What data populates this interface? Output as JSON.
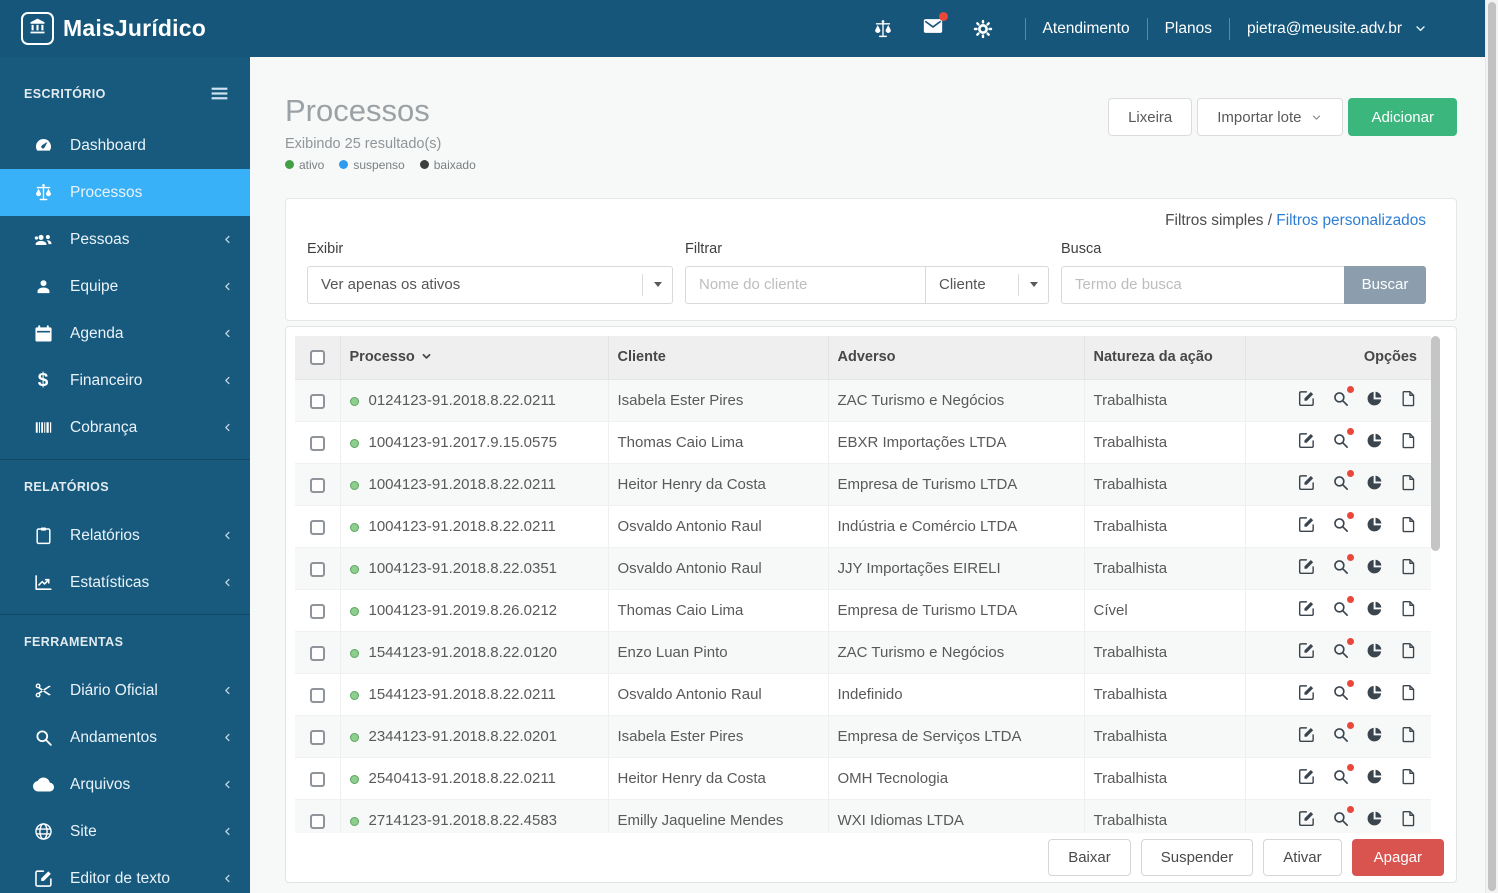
{
  "topbar": {
    "brand": "MaisJurídico",
    "nav_links": [
      {
        "key": "atendimento",
        "label": "Atendimento"
      },
      {
        "key": "planos",
        "label": "Planos"
      }
    ],
    "user_email": "pietra@meusite.adv.br",
    "icon_names": [
      "scale-icon",
      "mail-icon",
      "gear-icon"
    ]
  },
  "sidebar": {
    "sections": [
      {
        "key": "escritorio",
        "label": "ESCRITÓRIO",
        "has_menu_toggle": true,
        "items": [
          {
            "key": "dashboard",
            "label": "Dashboard",
            "icon": "dashboard",
            "active": false,
            "expandable": false
          },
          {
            "key": "processos",
            "label": "Processos",
            "icon": "scale",
            "active": true,
            "expandable": false
          },
          {
            "key": "pessoas",
            "label": "Pessoas",
            "icon": "people",
            "active": false,
            "expandable": true
          },
          {
            "key": "equipe",
            "label": "Equipe",
            "icon": "person",
            "active": false,
            "expandable": true
          },
          {
            "key": "agenda",
            "label": "Agenda",
            "icon": "calendar",
            "active": false,
            "expandable": true
          },
          {
            "key": "financeiro",
            "label": "Financeiro",
            "icon": "dollar",
            "active": false,
            "expandable": true
          },
          {
            "key": "cobranca",
            "label": "Cobrança",
            "icon": "barcode",
            "active": false,
            "expandable": true
          }
        ]
      },
      {
        "key": "relatorios",
        "label": "RELATÓRIOS",
        "has_menu_toggle": false,
        "items": [
          {
            "key": "relatorios",
            "label": "Relatórios",
            "icon": "clipboard",
            "active": false,
            "expandable": true
          },
          {
            "key": "estatisticas",
            "label": "Estatísticas",
            "icon": "chart-line",
            "active": false,
            "expandable": true
          }
        ]
      },
      {
        "key": "ferramentas",
        "label": "FERRAMENTAS",
        "has_menu_toggle": false,
        "items": [
          {
            "key": "diario-oficial",
            "label": "Diário Oficial",
            "icon": "scissors",
            "active": false,
            "expandable": true
          },
          {
            "key": "andamentos",
            "label": "Andamentos",
            "icon": "search",
            "active": false,
            "expandable": true
          },
          {
            "key": "arquivos",
            "label": "Arquivos",
            "icon": "cloud",
            "active": false,
            "expandable": true
          },
          {
            "key": "site",
            "label": "Site",
            "icon": "globe",
            "active": false,
            "expandable": true
          },
          {
            "key": "editor-de-texto",
            "label": "Editor de texto",
            "icon": "edit-square",
            "active": false,
            "expandable": true
          }
        ]
      }
    ]
  },
  "page": {
    "title": "Processos",
    "results_text": "Exibindo 25 resultado(s)",
    "legend": [
      {
        "key": "ativo",
        "label": "ativo",
        "color": "#43a047"
      },
      {
        "key": "suspenso",
        "label": "suspenso",
        "color": "#2e9df0"
      },
      {
        "key": "baixado",
        "label": "baixado",
        "color": "#3e3e3e"
      }
    ],
    "header_buttons": {
      "trash": "Lixeira",
      "import": "Importar lote",
      "add": "Adicionar"
    }
  },
  "filters": {
    "mode_links": {
      "simple": "Filtros simples",
      "separator": " / ",
      "custom": "Filtros personalizados"
    },
    "exibir": {
      "label": "Exibir",
      "value": "Ver apenas os ativos"
    },
    "filtrar": {
      "label": "Filtrar",
      "input_placeholder": "Nome do cliente",
      "select_value": "Cliente"
    },
    "busca": {
      "label": "Busca",
      "input_placeholder": "Termo de busca",
      "button_label": "Buscar"
    }
  },
  "table": {
    "columns": {
      "processo": "Processo",
      "cliente": "Cliente",
      "adverso": "Adverso",
      "natureza": "Natureza da ação",
      "opcoes": "Opções"
    },
    "row_actions": [
      "edit-square",
      "search-alert",
      "pie-chart",
      "file"
    ],
    "rows": [
      {
        "status": "ativo",
        "processo": "0124123-91.2018.8.22.0211",
        "cliente": "Isabela Ester Pires",
        "adverso": "ZAC Turismo e Negócios",
        "natureza": "Trabalhista"
      },
      {
        "status": "ativo",
        "processo": "1004123-91.2017.9.15.0575",
        "cliente": "Thomas Caio Lima",
        "adverso": "EBXR Importações LTDA",
        "natureza": "Trabalhista"
      },
      {
        "status": "ativo",
        "processo": "1004123-91.2018.8.22.0211",
        "cliente": "Heitor Henry da Costa",
        "adverso": "Empresa de Turismo LTDA",
        "natureza": "Trabalhista"
      },
      {
        "status": "ativo",
        "processo": "1004123-91.2018.8.22.0211",
        "cliente": "Osvaldo Antonio Raul",
        "adverso": "Indústria e Comércio LTDA",
        "natureza": "Trabalhista"
      },
      {
        "status": "ativo",
        "processo": "1004123-91.2018.8.22.0351",
        "cliente": "Osvaldo Antonio Raul",
        "adverso": "JJY Importações EIRELI",
        "natureza": "Trabalhista"
      },
      {
        "status": "ativo",
        "processo": "1004123-91.2019.8.26.0212",
        "cliente": "Thomas Caio Lima",
        "adverso": "Empresa de Turismo LTDA",
        "natureza": "Cível"
      },
      {
        "status": "ativo",
        "processo": "1544123-91.2018.8.22.0120",
        "cliente": "Enzo Luan Pinto",
        "adverso": "ZAC Turismo e Negócios",
        "natureza": "Trabalhista"
      },
      {
        "status": "ativo",
        "processo": "1544123-91.2018.8.22.0211",
        "cliente": "Osvaldo Antonio Raul",
        "adverso": "Indefinido",
        "natureza": "Trabalhista"
      },
      {
        "status": "ativo",
        "processo": "2344123-91.2018.8.22.0201",
        "cliente": "Isabela Ester Pires",
        "adverso": "Empresa de Serviços LTDA",
        "natureza": "Trabalhista"
      },
      {
        "status": "ativo",
        "processo": "2540413-91.2018.8.22.0211",
        "cliente": "Heitor Henry da Costa",
        "adverso": "OMH Tecnologia",
        "natureza": "Trabalhista"
      },
      {
        "status": "ativo",
        "processo": "2714123-91.2018.8.22.4583",
        "cliente": "Emilly Jaqueline Mendes",
        "adverso": "WXI Idiomas LTDA",
        "natureza": "Trabalhista"
      }
    ]
  },
  "bulk_actions": [
    {
      "key": "baixar",
      "label": "Baixar",
      "style": "default"
    },
    {
      "key": "suspender",
      "label": "Suspender",
      "style": "default"
    },
    {
      "key": "ativar",
      "label": "Ativar",
      "style": "default"
    },
    {
      "key": "apagar",
      "label": "Apagar",
      "style": "danger"
    }
  ],
  "colors": {
    "topbar_bg": "#15567a",
    "sidebar_bg": "#175a7e",
    "active_item_blue": "#38b1f8",
    "add_green": "#3bb77e",
    "danger_red": "#d9534f",
    "buscar_gray": "#8c9dad",
    "link_blue": "#2d7ed3",
    "status_ativo": "#43a047",
    "status_suspenso": "#2e9df0",
    "status_baixado": "#3e3e3e",
    "badge_red": "#e8473a"
  }
}
